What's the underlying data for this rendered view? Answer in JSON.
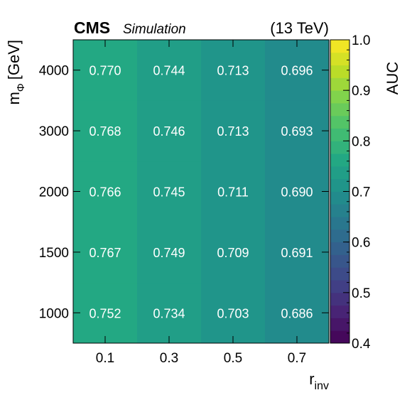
{
  "header": {
    "experiment": "CMS",
    "tag": "Simulation",
    "energy": "(13 TeV)"
  },
  "chart_data": {
    "type": "heatmap",
    "title": "",
    "xlabel": "r",
    "xlabel_sub": "inv",
    "ylabel": "m",
    "ylabel_sub": "Φ",
    "ylabel_unit": "[GeV]",
    "x_categories": [
      "0.1",
      "0.3",
      "0.5",
      "0.7"
    ],
    "y_categories": [
      "1000",
      "1500",
      "2000",
      "3000",
      "4000"
    ],
    "values": [
      [
        0.752,
        0.734,
        0.703,
        0.686
      ],
      [
        0.767,
        0.749,
        0.709,
        0.691
      ],
      [
        0.766,
        0.745,
        0.711,
        0.69
      ],
      [
        0.768,
        0.746,
        0.713,
        0.693
      ],
      [
        0.77,
        0.744,
        0.713,
        0.696
      ]
    ],
    "value_labels": [
      [
        "0.752",
        "0.734",
        "0.703",
        "0.686"
      ],
      [
        "0.767",
        "0.749",
        "0.709",
        "0.691"
      ],
      [
        "0.766",
        "0.745",
        "0.711",
        "0.690"
      ],
      [
        "0.768",
        "0.746",
        "0.713",
        "0.693"
      ],
      [
        "0.770",
        "0.744",
        "0.713",
        "0.696"
      ]
    ],
    "colorbar": {
      "label": "AUC",
      "range": [
        0.4,
        1.0
      ],
      "ticks": [
        "0.4",
        "0.5",
        "0.6",
        "0.7",
        "0.8",
        "0.9",
        "1.0"
      ],
      "levels": 24,
      "colormap": "viridis"
    }
  }
}
